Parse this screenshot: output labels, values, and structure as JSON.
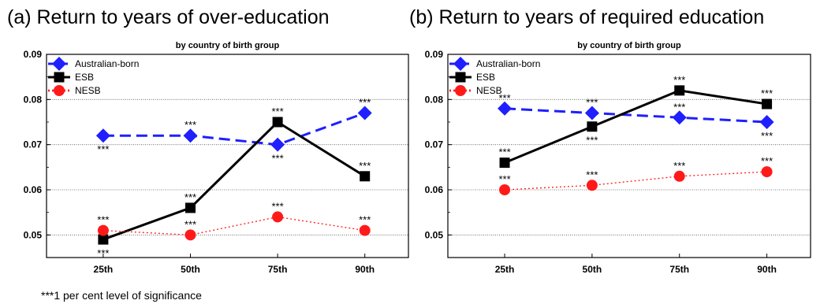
{
  "panels": [
    {
      "title": "(a) Return to years of over-education",
      "subtitle": "by country of birth group",
      "chart": {
        "type": "line",
        "categories": [
          "25th",
          "50th",
          "75th",
          "90th"
        ],
        "ylim": [
          0.045,
          0.09
        ],
        "yticks": [
          "0.05",
          "0.06",
          "0.07",
          "0.08",
          "0.09"
        ],
        "grid": true,
        "legend_position": "top-left",
        "series": [
          {
            "name": "Australian-born",
            "values": [
              0.072,
              0.072,
              0.07,
              0.077
            ],
            "color": "#1f1fff",
            "marker": "diamond",
            "line": "dashed",
            "stars": [
              "below",
              "above",
              "below",
              "above"
            ]
          },
          {
            "name": "ESB",
            "values": [
              0.049,
              0.056,
              0.075,
              0.063
            ],
            "color": "#000000",
            "marker": "square",
            "line": "solid",
            "stars": [
              "below",
              "above",
              "above",
              "above"
            ]
          },
          {
            "name": "NESB",
            "values": [
              0.051,
              0.05,
              0.054,
              0.051
            ],
            "color": "#ff1a1a",
            "marker": "circle",
            "line": "dotted",
            "stars": [
              "above",
              "above",
              "above",
              "above"
            ]
          }
        ]
      }
    },
    {
      "title": "(b) Return to years of required education",
      "subtitle": "by country of birth group",
      "chart": {
        "type": "line",
        "categories": [
          "25th",
          "50th",
          "75th",
          "90th"
        ],
        "ylim": [
          0.045,
          0.09
        ],
        "yticks": [
          "0.05",
          "0.06",
          "0.07",
          "0.08",
          "0.09"
        ],
        "grid": true,
        "legend_position": "top-left",
        "series": [
          {
            "name": "Australian-born",
            "values": [
              0.078,
              0.077,
              0.076,
              0.075
            ],
            "color": "#1f1fff",
            "marker": "diamond",
            "line": "dashed",
            "stars": [
              "above",
              "above",
              "above",
              "below"
            ]
          },
          {
            "name": "ESB",
            "values": [
              0.066,
              0.074,
              0.082,
              0.079
            ],
            "color": "#000000",
            "marker": "square",
            "line": "solid",
            "stars": [
              "above",
              "below",
              "above",
              "above"
            ]
          },
          {
            "name": "NESB",
            "values": [
              0.06,
              0.061,
              0.063,
              0.064
            ],
            "color": "#ff1a1a",
            "marker": "circle",
            "line": "dotted",
            "stars": [
              "above",
              "above",
              "above",
              "above"
            ]
          }
        ]
      }
    }
  ],
  "significance_marker": "***",
  "footnote": "***1 per cent level of significance",
  "chart_data": [
    {
      "type": "line",
      "title": "(a) Return to years of over-education",
      "subtitle": "by country of birth group",
      "categories": [
        "25th",
        "50th",
        "75th",
        "90th"
      ],
      "ylim": [
        0.045,
        0.09
      ],
      "series": [
        {
          "name": "Australian-born",
          "values": [
            0.072,
            0.072,
            0.07,
            0.077
          ]
        },
        {
          "name": "ESB",
          "values": [
            0.049,
            0.056,
            0.075,
            0.063
          ]
        },
        {
          "name": "NESB",
          "values": [
            0.051,
            0.05,
            0.054,
            0.051
          ]
        }
      ]
    },
    {
      "type": "line",
      "title": "(b) Return to years of required education",
      "subtitle": "by country of birth group",
      "categories": [
        "25th",
        "50th",
        "75th",
        "90th"
      ],
      "ylim": [
        0.045,
        0.09
      ],
      "series": [
        {
          "name": "Australian-born",
          "values": [
            0.078,
            0.077,
            0.076,
            0.075
          ]
        },
        {
          "name": "ESB",
          "values": [
            0.066,
            0.074,
            0.082,
            0.079
          ]
        },
        {
          "name": "NESB",
          "values": [
            0.06,
            0.061,
            0.063,
            0.064
          ]
        }
      ]
    }
  ]
}
